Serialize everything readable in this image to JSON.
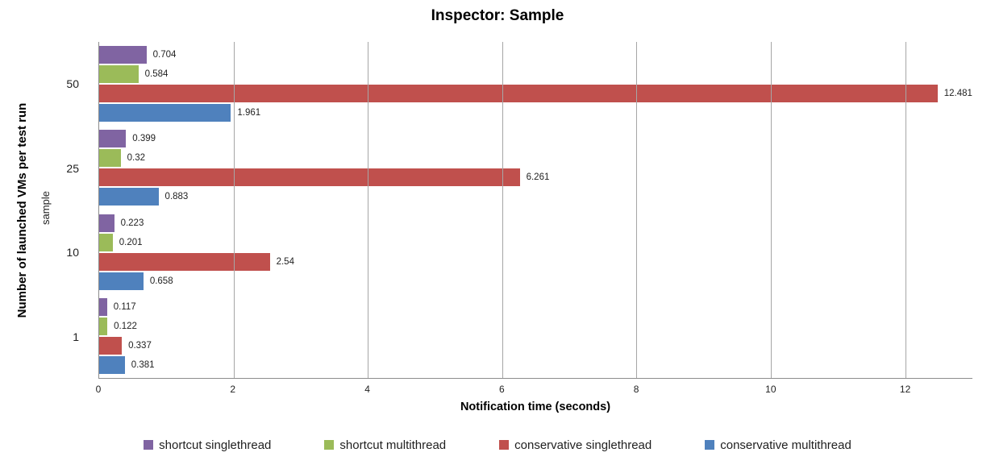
{
  "title": "Inspector: Sample",
  "chart_data": {
    "type": "bar",
    "orientation": "horizontal",
    "title": "Inspector: Sample",
    "xlabel": "Notification time (seconds)",
    "ylabel": "Number of launched VMs per test run",
    "ylabel_secondary": "sample",
    "categories": [
      "50",
      "25",
      "10",
      "1"
    ],
    "series": [
      {
        "name": "shortcut singlethread",
        "color": "#8064A2",
        "values": [
          0.704,
          0.399,
          0.223,
          0.117
        ]
      },
      {
        "name": "shortcut multithread",
        "color": "#9BBB59",
        "values": [
          0.584,
          0.32,
          0.201,
          0.122
        ]
      },
      {
        "name": "conservative singlethread",
        "color": "#C0504D",
        "values": [
          12.481,
          6.261,
          2.54,
          0.337
        ]
      },
      {
        "name": "conservative multithread",
        "color": "#4F81BD",
        "values": [
          1.961,
          0.883,
          0.658,
          0.381
        ]
      }
    ],
    "xlim": [
      0,
      13
    ],
    "x_ticks": [
      0,
      2,
      4,
      6,
      8,
      10,
      12
    ],
    "grid": true,
    "data_labels": true,
    "legend_position": "bottom"
  },
  "colors": {
    "gridline": "#a6a6a6",
    "axis": "#8c8c8c",
    "text": "#1f1f1f"
  }
}
